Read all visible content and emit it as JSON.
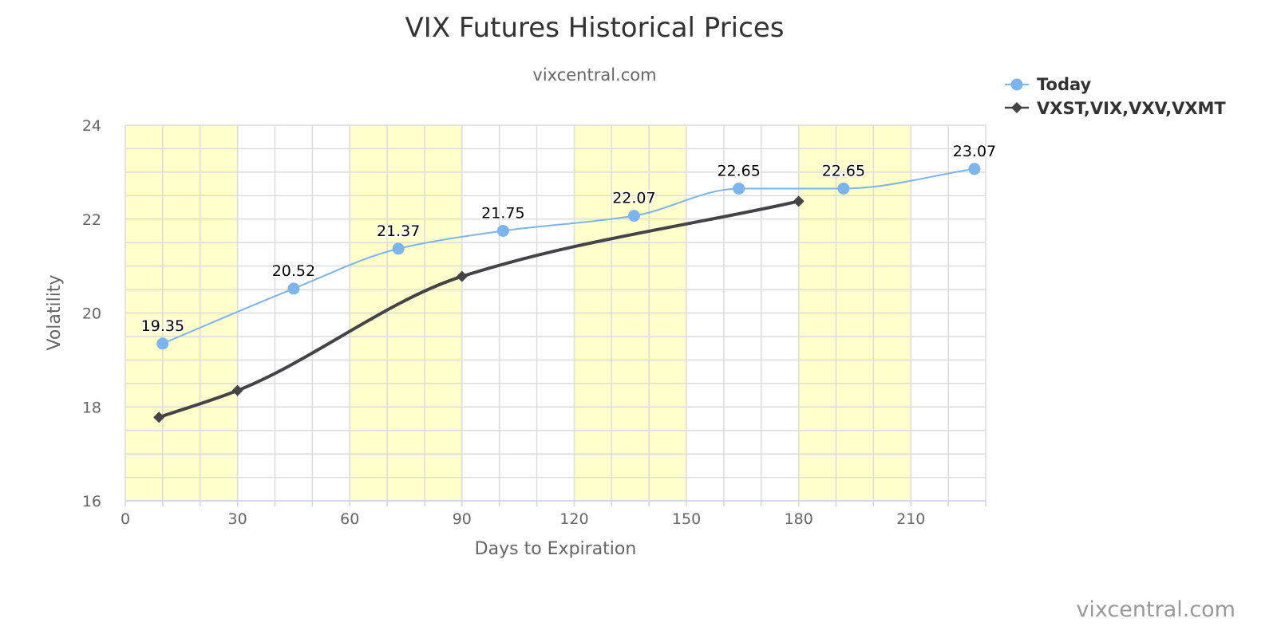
{
  "chart_data": {
    "type": "line",
    "title": "VIX Futures Historical Prices",
    "subtitle": "vixcentral.com",
    "xlabel": "Days to Expiration",
    "ylabel": "Volatility",
    "xlim": [
      0,
      230
    ],
    "ylim": [
      16,
      24
    ],
    "x_ticks": [
      0,
      30,
      60,
      90,
      120,
      150,
      180,
      210
    ],
    "y_ticks": [
      16,
      18,
      20,
      22,
      24
    ],
    "x_minor_step": 10,
    "y_minor_step": 0.5,
    "shaded_bands": [
      [
        0,
        30
      ],
      [
        60,
        90
      ],
      [
        120,
        150
      ],
      [
        180,
        210
      ]
    ],
    "grid": true,
    "legend_position": "top-right",
    "credits": "vixcentral.com",
    "series": [
      {
        "name": "Today",
        "color": "#7cb5ec",
        "marker": "circle",
        "show_labels": true,
        "x": [
          10,
          45,
          73,
          101,
          136,
          164,
          192,
          227
        ],
        "values": [
          19.35,
          20.52,
          21.37,
          21.75,
          22.07,
          22.65,
          22.65,
          23.07
        ],
        "labels": [
          "19.35",
          "20.52",
          "21.37",
          "21.75",
          "22.07",
          "22.65",
          "22.65",
          "23.07"
        ]
      },
      {
        "name": "VXST,VIX,VXV,VXMT",
        "color": "#434348",
        "marker": "diamond",
        "show_labels": false,
        "x": [
          9,
          30,
          90,
          180
        ],
        "values": [
          17.78,
          18.35,
          20.78,
          22.38
        ]
      }
    ]
  }
}
